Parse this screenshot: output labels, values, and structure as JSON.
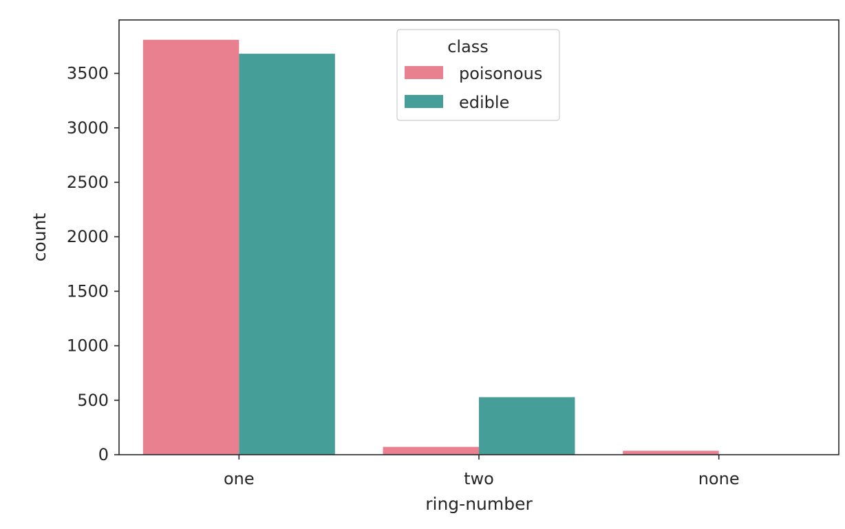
{
  "chart_data": {
    "type": "bar",
    "title": "",
    "xlabel": "ring-number",
    "ylabel": "count",
    "categories": [
      "one",
      "two",
      "none"
    ],
    "series": [
      {
        "name": "poisonous",
        "values": [
          3808,
          72,
          36
        ],
        "color": "#e8808f"
      },
      {
        "name": "edible",
        "values": [
          3680,
          528,
          0
        ],
        "color": "#469e98"
      }
    ],
    "ylim": [
      0,
      3990
    ],
    "yticks": [
      0,
      500,
      1000,
      1500,
      2000,
      2500,
      3000,
      3500
    ],
    "grid": false,
    "legend": {
      "title": "class",
      "placement": "top-center"
    }
  }
}
